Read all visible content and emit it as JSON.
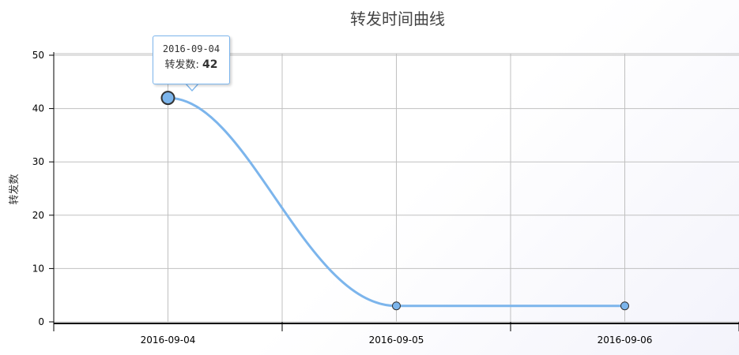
{
  "chart_data": {
    "type": "line",
    "title": "转发时间曲线",
    "xlabel": "",
    "ylabel": "转发数",
    "categories": [
      "2016-09-04",
      "2016-09-05",
      "2016-09-06"
    ],
    "series": [
      {
        "values": [
          42,
          3,
          3
        ],
        "color": "#7cb5ec"
      }
    ],
    "ylim": [
      0,
      50
    ],
    "yticks": [
      "0",
      "10",
      "20",
      "30",
      "40",
      "50"
    ],
    "grid": true,
    "legend": "none"
  },
  "tooltip": {
    "date": "2016-09-04",
    "series_label": "转发数",
    "separator": ":",
    "value": "42"
  },
  "colors": {
    "series": "#7cb5ec",
    "marker_fill": "#7cb5ec",
    "marker_stroke": "#333333",
    "grid": "#c0c0c0",
    "axis": "#000000"
  }
}
